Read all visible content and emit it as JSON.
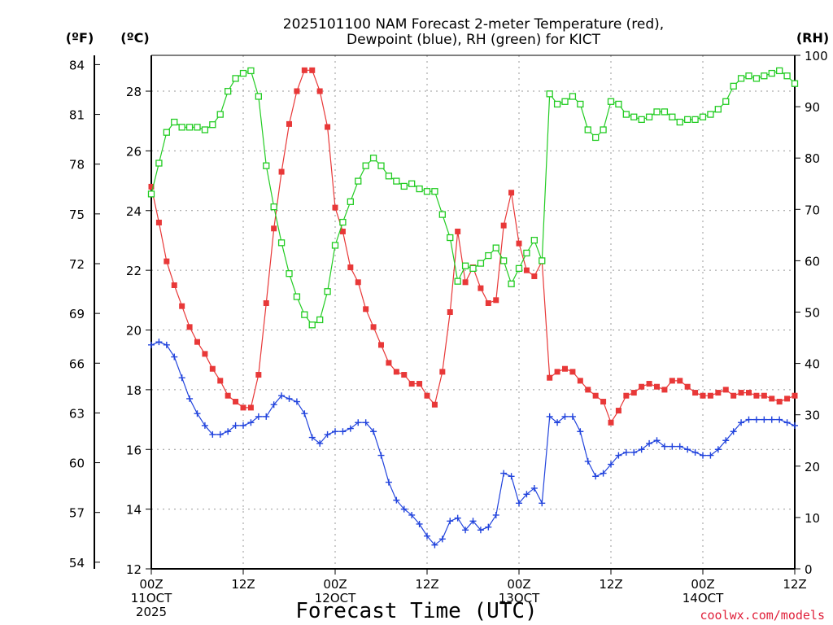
{
  "chart_data": {
    "type": "line",
    "title_line1": "2025101100 NAM Forecast 2-meter Temperature (red),",
    "title_line2": "Dewpoint (blue), RH (green) for KICT",
    "xlabel": "Forecast Time (UTC)",
    "credit": "coolwx.com/models",
    "unit_f": "(ºF)",
    "unit_c": "(ºC)",
    "unit_rh": "(RH)",
    "grid": true,
    "x_hours_range": [
      0,
      84
    ],
    "x_ticks": [
      {
        "h": 0,
        "lines": [
          "00Z",
          "11OCT",
          "2025"
        ]
      },
      {
        "h": 12,
        "lines": [
          "12Z"
        ]
      },
      {
        "h": 24,
        "lines": [
          "00Z",
          "12OCT"
        ]
      },
      {
        "h": 36,
        "lines": [
          "12Z"
        ]
      },
      {
        "h": 48,
        "lines": [
          "00Z",
          "13OCT"
        ]
      },
      {
        "h": 60,
        "lines": [
          "12Z"
        ]
      },
      {
        "h": 72,
        "lines": [
          "00Z",
          "14OCT"
        ]
      },
      {
        "h": 84,
        "lines": [
          "12Z"
        ]
      }
    ],
    "ylim_c": [
      12,
      29.2
    ],
    "yticks_c": [
      12,
      14,
      16,
      18,
      20,
      22,
      24,
      26,
      28
    ],
    "yticks_f": [
      54,
      57,
      60,
      63,
      66,
      69,
      72,
      75,
      78,
      81,
      84
    ],
    "ylim_rh": [
      0,
      100
    ],
    "yticks_rh": [
      0,
      10,
      20,
      30,
      40,
      50,
      60,
      70,
      80,
      90,
      100
    ],
    "colors": {
      "temperature": "#e83838",
      "dewpoint": "#2244dd",
      "rh": "#22cc22"
    },
    "series": [
      {
        "key": "temperature",
        "units": "C",
        "points": [
          [
            0,
            24.8
          ],
          [
            1,
            23.6
          ],
          [
            2,
            22.3
          ],
          [
            3,
            21.5
          ],
          [
            4,
            20.8
          ],
          [
            5,
            20.1
          ],
          [
            6,
            19.6
          ],
          [
            7,
            19.2
          ],
          [
            8,
            18.7
          ],
          [
            9,
            18.3
          ],
          [
            10,
            17.8
          ],
          [
            11,
            17.6
          ],
          [
            12,
            17.4
          ],
          [
            13,
            17.4
          ],
          [
            14,
            18.5
          ],
          [
            15,
            20.9
          ],
          [
            16,
            23.4
          ],
          [
            17,
            25.3
          ],
          [
            18,
            26.9
          ],
          [
            19,
            28.0
          ],
          [
            20,
            28.7
          ],
          [
            21,
            28.7
          ],
          [
            22,
            28.0
          ],
          [
            23,
            26.8
          ],
          [
            24,
            24.1
          ],
          [
            25,
            23.3
          ],
          [
            26,
            22.1
          ],
          [
            27,
            21.6
          ],
          [
            28,
            20.7
          ],
          [
            29,
            20.1
          ],
          [
            30,
            19.5
          ],
          [
            31,
            18.9
          ],
          [
            32,
            18.6
          ],
          [
            33,
            18.5
          ],
          [
            34,
            18.2
          ],
          [
            35,
            18.2
          ],
          [
            36,
            17.8
          ],
          [
            37,
            17.5
          ],
          [
            38,
            18.6
          ],
          [
            39,
            20.6
          ],
          [
            40,
            23.3
          ],
          [
            41,
            21.6
          ],
          [
            42,
            22.1
          ],
          [
            43,
            21.4
          ],
          [
            44,
            20.9
          ],
          [
            45,
            21.0
          ],
          [
            46,
            23.5
          ],
          [
            47,
            24.6
          ],
          [
            48,
            22.9
          ],
          [
            49,
            22.0
          ],
          [
            50,
            21.8
          ],
          [
            51,
            22.3
          ],
          [
            52,
            18.4
          ],
          [
            53,
            18.6
          ],
          [
            54,
            18.7
          ],
          [
            55,
            18.6
          ],
          [
            56,
            18.3
          ],
          [
            57,
            18.0
          ],
          [
            58,
            17.8
          ],
          [
            59,
            17.6
          ],
          [
            60,
            16.9
          ],
          [
            61,
            17.3
          ],
          [
            62,
            17.8
          ],
          [
            63,
            17.9
          ],
          [
            64,
            18.1
          ],
          [
            65,
            18.2
          ],
          [
            66,
            18.1
          ],
          [
            67,
            18.0
          ],
          [
            68,
            18.3
          ],
          [
            69,
            18.3
          ],
          [
            70,
            18.1
          ],
          [
            71,
            17.9
          ],
          [
            72,
            17.8
          ],
          [
            73,
            17.8
          ],
          [
            74,
            17.9
          ],
          [
            75,
            18.0
          ],
          [
            76,
            17.8
          ],
          [
            77,
            17.9
          ],
          [
            78,
            17.9
          ],
          [
            79,
            17.8
          ],
          [
            80,
            17.8
          ],
          [
            81,
            17.7
          ],
          [
            82,
            17.6
          ],
          [
            83,
            17.7
          ],
          [
            84,
            17.8
          ]
        ]
      },
      {
        "key": "dewpoint",
        "units": "C",
        "points": [
          [
            0,
            19.5
          ],
          [
            1,
            19.6
          ],
          [
            2,
            19.5
          ],
          [
            3,
            19.1
          ],
          [
            4,
            18.4
          ],
          [
            5,
            17.7
          ],
          [
            6,
            17.2
          ],
          [
            7,
            16.8
          ],
          [
            8,
            16.5
          ],
          [
            9,
            16.5
          ],
          [
            10,
            16.6
          ],
          [
            11,
            16.8
          ],
          [
            12,
            16.8
          ],
          [
            13,
            16.9
          ],
          [
            14,
            17.1
          ],
          [
            15,
            17.1
          ],
          [
            16,
            17.5
          ],
          [
            17,
            17.8
          ],
          [
            18,
            17.7
          ],
          [
            19,
            17.6
          ],
          [
            20,
            17.2
          ],
          [
            21,
            16.4
          ],
          [
            22,
            16.2
          ],
          [
            23,
            16.5
          ],
          [
            24,
            16.6
          ],
          [
            25,
            16.6
          ],
          [
            26,
            16.7
          ],
          [
            27,
            16.9
          ],
          [
            28,
            16.9
          ],
          [
            29,
            16.6
          ],
          [
            30,
            15.8
          ],
          [
            31,
            14.9
          ],
          [
            32,
            14.3
          ],
          [
            33,
            14.0
          ],
          [
            34,
            13.8
          ],
          [
            35,
            13.5
          ],
          [
            36,
            13.1
          ],
          [
            37,
            12.8
          ],
          [
            38,
            13.0
          ],
          [
            39,
            13.6
          ],
          [
            40,
            13.7
          ],
          [
            41,
            13.3
          ],
          [
            42,
            13.6
          ],
          [
            43,
            13.3
          ],
          [
            44,
            13.4
          ],
          [
            45,
            13.8
          ],
          [
            46,
            15.2
          ],
          [
            47,
            15.1
          ],
          [
            48,
            14.2
          ],
          [
            49,
            14.5
          ],
          [
            50,
            14.7
          ],
          [
            51,
            14.2
          ],
          [
            52,
            17.1
          ],
          [
            53,
            16.9
          ],
          [
            54,
            17.1
          ],
          [
            55,
            17.1
          ],
          [
            56,
            16.6
          ],
          [
            57,
            15.6
          ],
          [
            58,
            15.1
          ],
          [
            59,
            15.2
          ],
          [
            60,
            15.5
          ],
          [
            61,
            15.8
          ],
          [
            62,
            15.9
          ],
          [
            63,
            15.9
          ],
          [
            64,
            16.0
          ],
          [
            65,
            16.2
          ],
          [
            66,
            16.3
          ],
          [
            67,
            16.1
          ],
          [
            68,
            16.1
          ],
          [
            69,
            16.1
          ],
          [
            70,
            16.0
          ],
          [
            71,
            15.9
          ],
          [
            72,
            15.8
          ],
          [
            73,
            15.8
          ],
          [
            74,
            16.0
          ],
          [
            75,
            16.3
          ],
          [
            76,
            16.6
          ],
          [
            77,
            16.9
          ],
          [
            78,
            17.0
          ],
          [
            79,
            17.0
          ],
          [
            80,
            17.0
          ],
          [
            81,
            17.0
          ],
          [
            82,
            17.0
          ],
          [
            83,
            16.9
          ],
          [
            84,
            16.8
          ]
        ]
      },
      {
        "key": "rh",
        "units": "%",
        "points": [
          [
            0,
            73
          ],
          [
            1,
            79
          ],
          [
            2,
            85
          ],
          [
            3,
            87
          ],
          [
            4,
            86
          ],
          [
            5,
            86
          ],
          [
            6,
            86
          ],
          [
            7,
            85.5
          ],
          [
            8,
            86.5
          ],
          [
            9,
            88.5
          ],
          [
            10,
            93
          ],
          [
            11,
            95.5
          ],
          [
            12,
            96.5
          ],
          [
            13,
            97
          ],
          [
            14,
            92
          ],
          [
            15,
            78.5
          ],
          [
            16,
            70.5
          ],
          [
            17,
            63.5
          ],
          [
            18,
            57.5
          ],
          [
            19,
            53
          ],
          [
            20,
            49.5
          ],
          [
            21,
            47.5
          ],
          [
            22,
            48.5
          ],
          [
            23,
            54
          ],
          [
            24,
            63
          ],
          [
            25,
            67.5
          ],
          [
            26,
            71.5
          ],
          [
            27,
            75.5
          ],
          [
            28,
            78.5
          ],
          [
            29,
            80
          ],
          [
            30,
            78.5
          ],
          [
            31,
            76.5
          ],
          [
            32,
            75.5
          ],
          [
            33,
            74.5
          ],
          [
            34,
            75
          ],
          [
            35,
            74
          ],
          [
            36,
            73.5
          ],
          [
            37,
            73.5
          ],
          [
            38,
            69
          ],
          [
            39,
            64.5
          ],
          [
            40,
            56
          ],
          [
            41,
            59
          ],
          [
            42,
            58.5
          ],
          [
            43,
            59.5
          ],
          [
            44,
            61
          ],
          [
            45,
            62.5
          ],
          [
            46,
            60
          ],
          [
            47,
            55.5
          ],
          [
            48,
            58.5
          ],
          [
            49,
            61.5
          ],
          [
            50,
            64
          ],
          [
            51,
            60
          ],
          [
            52,
            92.5
          ],
          [
            53,
            90.5
          ],
          [
            54,
            91
          ],
          [
            55,
            92
          ],
          [
            56,
            90.5
          ],
          [
            57,
            85.5
          ],
          [
            58,
            84
          ],
          [
            59,
            85.5
          ],
          [
            60,
            91
          ],
          [
            61,
            90.5
          ],
          [
            62,
            88.5
          ],
          [
            63,
            88
          ],
          [
            64,
            87.5
          ],
          [
            65,
            88
          ],
          [
            66,
            89
          ],
          [
            67,
            89
          ],
          [
            68,
            88
          ],
          [
            69,
            87
          ],
          [
            70,
            87.5
          ],
          [
            71,
            87.5
          ],
          [
            72,
            88
          ],
          [
            73,
            88.5
          ],
          [
            74,
            89.5
          ],
          [
            75,
            91
          ],
          [
            76,
            94
          ],
          [
            77,
            95.5
          ],
          [
            78,
            96
          ],
          [
            79,
            95.5
          ],
          [
            80,
            96
          ],
          [
            81,
            96.5
          ],
          [
            82,
            97
          ],
          [
            83,
            96
          ],
          [
            84,
            94.5
          ]
        ]
      }
    ]
  }
}
